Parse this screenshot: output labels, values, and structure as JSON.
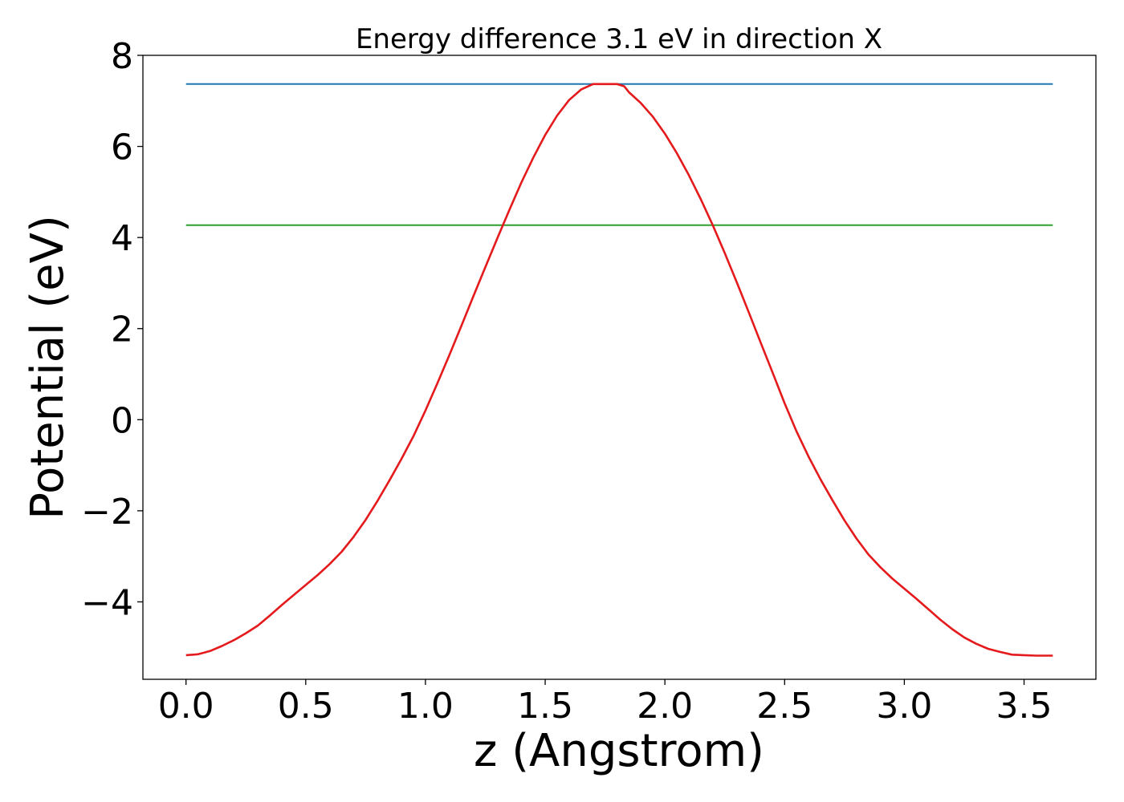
{
  "chart_data": {
    "type": "line",
    "title": "Energy difference 3.1 eV in direction X",
    "xlabel": "z (Angstrom)",
    "ylabel": "Potential (eV)",
    "xlim": [
      -0.18,
      3.8
    ],
    "ylim": [
      -5.7,
      8.0
    ],
    "xticks": [
      0.0,
      0.5,
      1.0,
      1.5,
      2.0,
      2.5,
      3.0,
      3.5
    ],
    "xtick_labels": [
      "0.0",
      "0.5",
      "1.0",
      "1.5",
      "2.0",
      "2.5",
      "3.0",
      "3.5"
    ],
    "yticks": [
      -4,
      -2,
      0,
      2,
      4,
      6,
      8
    ],
    "ytick_labels": [
      "−4",
      "−2",
      "0",
      "2",
      "4",
      "6",
      "8"
    ],
    "grid": false,
    "legend": "none",
    "series": [
      {
        "color": "#1f77b4",
        "x": [
          0.0,
          3.62
        ],
        "y": [
          7.37,
          7.37
        ]
      },
      {
        "color": "#2ca02c",
        "x": [
          0.0,
          3.62
        ],
        "y": [
          4.27,
          4.27
        ]
      },
      {
        "color": "#e41a1c",
        "x": [
          0.0,
          0.05,
          0.1,
          0.15,
          0.2,
          0.25,
          0.3,
          0.35,
          0.4,
          0.45,
          0.5,
          0.55,
          0.6,
          0.65,
          0.7,
          0.75,
          0.8,
          0.85,
          0.9,
          0.95,
          1.0,
          1.05,
          1.1,
          1.15,
          1.2,
          1.25,
          1.3,
          1.35,
          1.4,
          1.45,
          1.5,
          1.55,
          1.6,
          1.65,
          1.7,
          1.75,
          1.8,
          1.83,
          1.85,
          1.9,
          1.95,
          2.0,
          2.05,
          2.1,
          2.15,
          2.2,
          2.25,
          2.3,
          2.35,
          2.4,
          2.45,
          2.5,
          2.55,
          2.6,
          2.65,
          2.7,
          2.75,
          2.8,
          2.85,
          2.9,
          2.95,
          3.0,
          3.05,
          3.1,
          3.15,
          3.2,
          3.25,
          3.3,
          3.35,
          3.4,
          3.45,
          3.5,
          3.55,
          3.62
        ],
        "y": [
          -5.17,
          -5.15,
          -5.08,
          -4.97,
          -4.84,
          -4.69,
          -4.52,
          -4.3,
          -4.07,
          -3.85,
          -3.63,
          -3.41,
          -3.17,
          -2.9,
          -2.57,
          -2.2,
          -1.78,
          -1.33,
          -0.86,
          -0.36,
          0.2,
          0.8,
          1.42,
          2.06,
          2.71,
          3.35,
          3.98,
          4.6,
          5.2,
          5.75,
          6.25,
          6.68,
          7.02,
          7.25,
          7.37,
          7.37,
          7.37,
          7.32,
          7.19,
          6.95,
          6.65,
          6.28,
          5.85,
          5.37,
          4.84,
          4.27,
          3.66,
          3.02,
          2.36,
          1.69,
          1.03,
          0.36,
          -0.26,
          -0.81,
          -1.31,
          -1.77,
          -2.21,
          -2.61,
          -2.96,
          -3.24,
          -3.49,
          -3.71,
          -3.93,
          -4.16,
          -4.39,
          -4.6,
          -4.78,
          -4.92,
          -5.03,
          -5.1,
          -5.16,
          -5.17,
          -5.18,
          -5.18
        ]
      }
    ]
  }
}
